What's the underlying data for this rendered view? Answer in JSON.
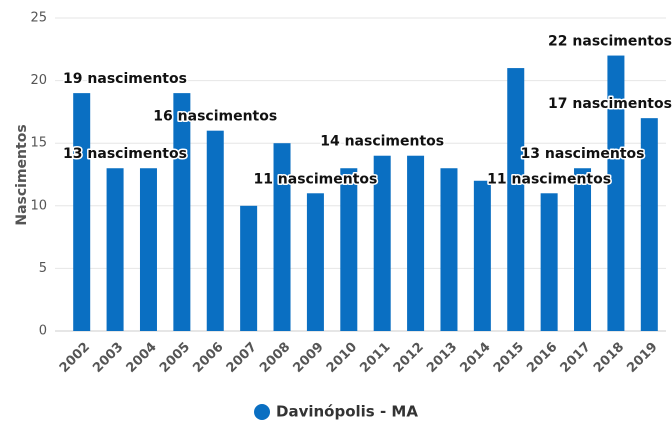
{
  "chart_data": {
    "type": "bar",
    "y_axis_label": "Nascimentos",
    "categories": [
      "2002",
      "2003",
      "2004",
      "2005",
      "2006",
      "2007",
      "2008",
      "2009",
      "2010",
      "2011",
      "2012",
      "2013",
      "2014",
      "2015",
      "2016",
      "2017",
      "2018",
      "2019"
    ],
    "series": [
      {
        "name": "Davinópolis - MA",
        "color": "#0a6fc2",
        "values": [
          19,
          13,
          13,
          19,
          16,
          10,
          15,
          11,
          13,
          14,
          14,
          13,
          12,
          21,
          11,
          13,
          22,
          17
        ],
        "value_labels": [
          "19 nascimentos",
          "13 nascimentos",
          null,
          null,
          "16 nascimentos",
          null,
          null,
          "11 nascimentos",
          null,
          "14 nascimentos",
          null,
          null,
          null,
          null,
          "11 nascimentos",
          "13 nascimentos",
          "22 nascimentos",
          "17 nascimentos"
        ]
      }
    ],
    "ylim": [
      0,
      25
    ],
    "yticks": [
      0,
      5,
      10,
      15,
      20,
      25
    ],
    "grid": true,
    "legend": "bottom"
  }
}
